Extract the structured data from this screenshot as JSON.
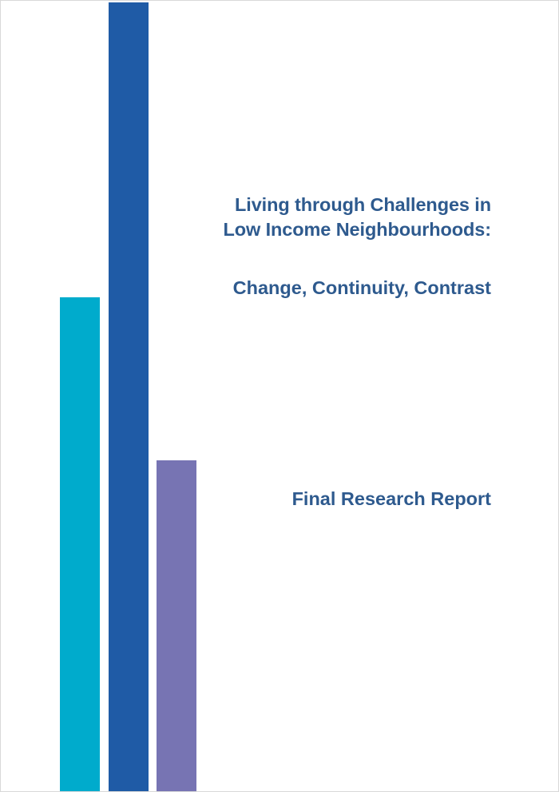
{
  "cover": {
    "title_line_1": "Living through Challenges in",
    "title_line_2": "Low Income Neighbourhoods:",
    "subtitle": "Change, Continuity, Contrast",
    "report_label": "Final Research Report"
  },
  "colors": {
    "text": "#2e5a8e",
    "bar_cyan": "#00abcc",
    "bar_blue": "#1f5ba6",
    "bar_purple": "#7774b3"
  }
}
